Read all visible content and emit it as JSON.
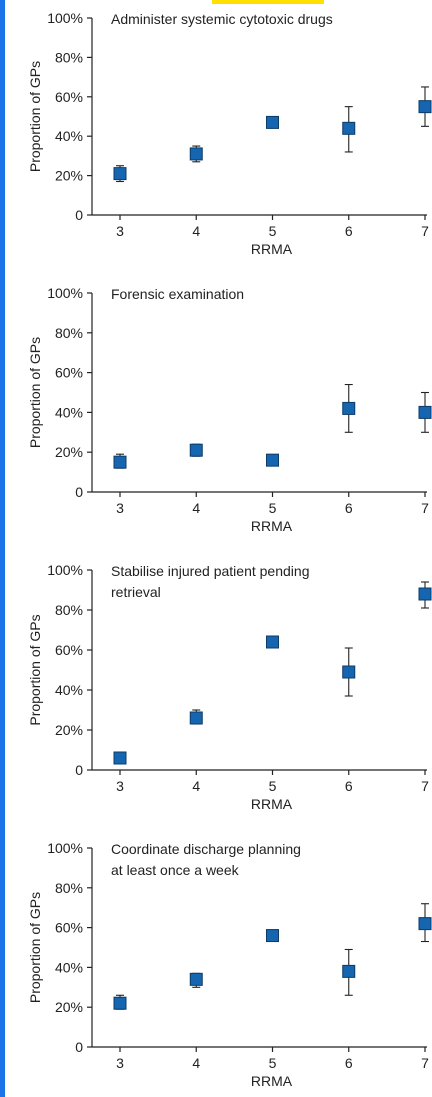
{
  "theme": {
    "accent": "#1a73e8",
    "marker": "#1565b0",
    "marker_stroke": "#0d3b66",
    "axis": "#222222",
    "top_strip": "#ffe000"
  },
  "chart_data": [
    {
      "type": "scatter",
      "title": "Administer systemic cytotoxic drugs",
      "xlabel": "RRMA",
      "ylabel": "Proportion of GPs",
      "x": [
        3,
        4,
        5,
        6,
        7
      ],
      "y": [
        21,
        31,
        47,
        44,
        55
      ],
      "err_low": [
        17,
        27,
        null,
        32,
        45
      ],
      "err_high": [
        25,
        35,
        null,
        55,
        65
      ],
      "xlim": [
        2.6,
        7
      ],
      "ylim": [
        0,
        100
      ],
      "yticks": [
        "0",
        "20%",
        "40%",
        "60%",
        "80%",
        "100%"
      ],
      "xticks": [
        "3",
        "4",
        "5",
        "6",
        "7"
      ],
      "grid": false
    },
    {
      "type": "scatter",
      "title": "Forensic examination",
      "xlabel": "RRMA",
      "ylabel": "Proportion of GPs",
      "x": [
        3,
        4,
        5,
        6,
        7
      ],
      "y": [
        15,
        21,
        16,
        42,
        40
      ],
      "err_low": [
        12,
        18,
        null,
        30,
        30
      ],
      "err_high": [
        19,
        24,
        null,
        54,
        50
      ],
      "xlim": [
        2.6,
        7
      ],
      "ylim": [
        0,
        100
      ],
      "yticks": [
        "0",
        "20%",
        "40%",
        "60%",
        "80%",
        "100%"
      ],
      "xticks": [
        "3",
        "4",
        "5",
        "6",
        "7"
      ],
      "grid": false
    },
    {
      "type": "scatter",
      "title": "Stabilise injured patient pending retrieval",
      "title_lines": [
        "Stabilise injured patient pending",
        "retrieval"
      ],
      "xlabel": "RRMA",
      "ylabel": "Proportion of GPs",
      "x": [
        3,
        4,
        5,
        6,
        7
      ],
      "y": [
        6,
        26,
        64,
        49,
        88
      ],
      "err_low": [
        null,
        23,
        null,
        37,
        81
      ],
      "err_high": [
        null,
        30,
        null,
        61,
        94
      ],
      "xlim": [
        2.6,
        7
      ],
      "ylim": [
        0,
        100
      ],
      "yticks": [
        "0",
        "20%",
        "40%",
        "60%",
        "80%",
        "100%"
      ],
      "xticks": [
        "3",
        "4",
        "5",
        "6",
        "7"
      ],
      "grid": false
    },
    {
      "type": "scatter",
      "title": "Coordinate discharge planning at least once a week",
      "title_lines": [
        "Coordinate discharge planning",
        "at least once a week"
      ],
      "xlabel": "RRMA",
      "ylabel": "Proportion of GPs",
      "x": [
        3,
        4,
        5,
        6,
        7
      ],
      "y": [
        22,
        34,
        56,
        38,
        62
      ],
      "err_low": [
        19,
        30,
        null,
        26,
        53
      ],
      "err_high": [
        26,
        37,
        null,
        49,
        72
      ],
      "xlim": [
        2.6,
        7
      ],
      "ylim": [
        0,
        100
      ],
      "yticks": [
        "0",
        "20%",
        "40%",
        "60%",
        "80%",
        "100%"
      ],
      "xticks": [
        "3",
        "4",
        "5",
        "6",
        "7"
      ],
      "grid": false
    }
  ]
}
